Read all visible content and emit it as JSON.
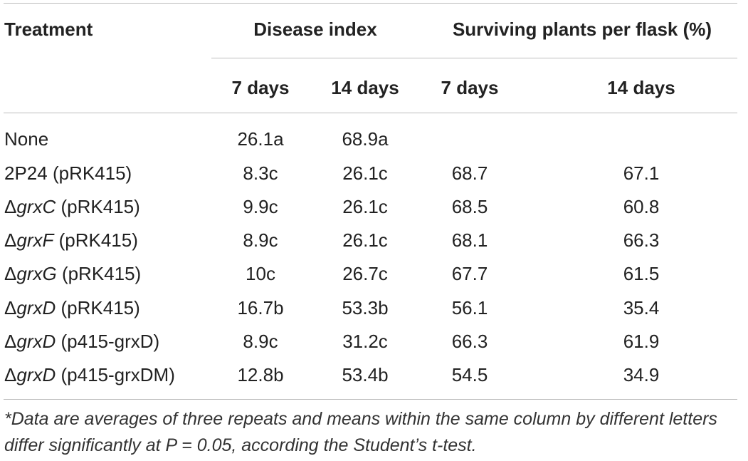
{
  "table": {
    "headers": {
      "treatment": "Treatment",
      "disease_index": "Disease index",
      "surviving": "Surviving plants per flask (%)",
      "di_7": "7 days",
      "di_14": "14 days",
      "sp_7": "7 days",
      "sp_14": "14 days"
    },
    "rows": [
      {
        "prefix": "",
        "gene": "",
        "label": "None",
        "di7": "26.1a",
        "di14": "68.9a",
        "sp7": "",
        "sp14": ""
      },
      {
        "prefix": "",
        "gene": "",
        "label": "2P24 (pRK415)",
        "di7": "8.3c",
        "di14": "26.1c",
        "sp7": "68.7",
        "sp14": "67.1"
      },
      {
        "prefix": "Δ",
        "gene": "grxC",
        "label": " (pRK415)",
        "di7": "9.9c",
        "di14": "26.1c",
        "sp7": "68.5",
        "sp14": "60.8"
      },
      {
        "prefix": "Δ",
        "gene": "grxF",
        "label": " (pRK415)",
        "di7": "8.9c",
        "di14": "26.1c",
        "sp7": "68.1",
        "sp14": "66.3"
      },
      {
        "prefix": "Δ",
        "gene": "grxG",
        "label": " (pRK415)",
        "di7": "10c",
        "di14": "26.7c",
        "sp7": "67.7",
        "sp14": "61.5"
      },
      {
        "prefix": "Δ",
        "gene": "grxD",
        "label": " (pRK415)",
        "di7": "16.7b",
        "di14": "53.3b",
        "sp7": "56.1",
        "sp14": "35.4"
      },
      {
        "prefix": "Δ",
        "gene": "grxD",
        "label": " (p415-grxD)",
        "di7": "8.9c",
        "di14": "31.2c",
        "sp7": "66.3",
        "sp14": "61.9"
      },
      {
        "prefix": "Δ",
        "gene": "grxD",
        "label": " (p415-grxDM)",
        "di7": "12.8b",
        "di14": "53.4b",
        "sp7": "54.5",
        "sp14": "34.9"
      }
    ]
  },
  "footnote": "*Data are averages of three repeats and means within the same column by different letters differ significantly at P = 0.05, according the Student’s t-test."
}
